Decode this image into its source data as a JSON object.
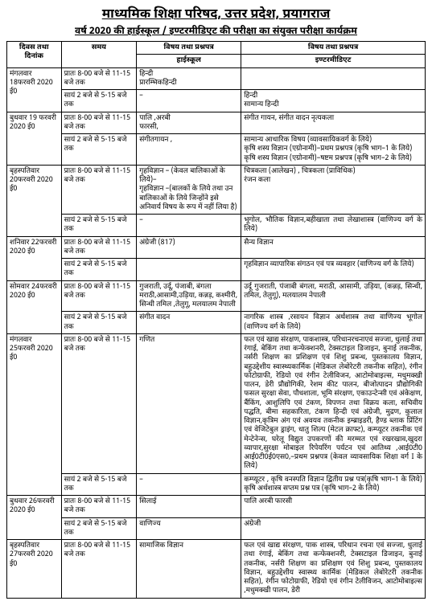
{
  "header": {
    "title": "माध्यमिक शिक्षा परिषद, उत्तर प्रदेश, प्रयागराज",
    "subtitle": "वर्ष 2020 की हाईस्कूल / इण्टरमीडिएट की परीक्षा का संयुक्त परीक्षा कार्यक्रम"
  },
  "columns": {
    "day": "दिवस तथा दिनांक",
    "time": "समय",
    "hs_top": "विषय तथा प्रश्नपत्र",
    "hs_bottom": "हाईस्कूल",
    "inter_top": "विषय तथा प्रश्नपत्र",
    "inter_bottom": "इण्टरमीडिएट"
  },
  "time": {
    "morning": "प्रातः 8-00 बजे से 11-15 बजे तक",
    "evening": "सायं 2 बजे से 5-15 बजे तक"
  },
  "rows": [
    {
      "day": "मंगलवार 18फरवरी 2020 ई0",
      "slots": [
        {
          "time_key": "morning",
          "hs": "हिन्दी\nप्रारम्भिकहिन्दी",
          "inter": ""
        },
        {
          "time_key": "evening",
          "hs": "–",
          "inter": "हिन्दी\nसामान्य हिन्दी"
        }
      ]
    },
    {
      "day": "बुधवार 19 फरवरी 2020 ई0",
      "slots": [
        {
          "time_key": "morning",
          "hs": "पालि ,अरबी\nफारसी,",
          "inter": "संगीत गायन, संगीत वादन नृत्यकला"
        },
        {
          "time_key": "evening",
          "hs": "संगीतगायन ,",
          "inter": "सामान्य आधारिक विषय (व्यावसायिकवर्ग के लिये)\nकृषि शस्य विज्ञान (एग्रोनामी)–प्रथम प्रश्नपत्र (कृषि भाग–1 के लिये)\nकृषि शस्य विज्ञान (एग्रोनामी)–षष्टम प्रश्नपत्र (कृषि भाग–2 के लिये)"
        }
      ]
    },
    {
      "day": "बृहस्पतिवार 20फरवरी 2020 ई0",
      "slots": [
        {
          "time_key": "morning",
          "hs": "गृहविज्ञान – (केवल बालिकाओं के लिये)–\nगृहविज्ञान –(बालकों के लिये तथा उन बालिकाओं के लिये जिन्होंने इसे अनिवार्य विषय के रूप में नहीं लिया है)",
          "inter": "चित्रकला (आलेखन) , चित्रकला (प्राविधिक)\nरंजन कला"
        },
        {
          "time_key": "evening",
          "hs": "–",
          "inter": "भूगोल, भौतिक विज्ञान,बहीखाता तथा लेखाशास्त्र (वाणिज्य वर्ग के लिये)"
        }
      ]
    },
    {
      "day": "शनिवार 22फरवरी 2020 ई0",
      "slots": [
        {
          "time_key": "morning",
          "hs": "अंग्रेजी (817)",
          "inter": "सैन्य विज्ञान"
        },
        {
          "time_key": "evening",
          "hs": "",
          "inter": "गृहविज्ञान व्यापारिक संगठन एवं पत्र व्यवहार (वाणिज्य वर्ग के लिये)"
        }
      ]
    },
    {
      "day": "सोमवार 24फरवरी 2020 ई0",
      "slots": [
        {
          "time_key": "morning",
          "hs": "गुजराती, उर्दू, पंजाबी, बंगला मराठी,आसामी,उड़िया, कन्नड़, कश्मीरी, सिन्धी तमिल ,तेलुगू, मलयालम नेपाली",
          "inter": "उर्दू गुजराती, पंजाबी बंगला, मराठी, आसामी, उड़िया, (कन्नड़, सिन्धी, तमिल, तेलुगू), मलयालम नेपाली"
        },
        {
          "time_key": "evening",
          "hs": "संगीत वादन",
          "inter": "नागरिक शास्त्र ,रसायन विज्ञान अर्थशास्त्र तथा वाणिज्य भूगोल (वाणिज्य वर्ग के लिये)"
        }
      ]
    },
    {
      "day": "मंगलवार 25फरवरी 2020 ई0",
      "slots": [
        {
          "time_key": "morning",
          "hs": "गणित",
          "inter": "फल एवं खाद्य संरक्षण, पाकशास्त्र, परिधानरचनाएवं सज्जा, धुलाई तथा रंगाई, बेकिंग तथा कन्फेक्शनरी, टेक्सटाइल डिजाइन, बुनाई तकनीक, नर्सरी शिक्षण का प्रशिक्षण एवं शिशु प्रबन्ध, पुस्तकालय विज्ञान, बहुउद्देशीय स्वास्थ्यकार्मिक (मेडिकल लेबोरेटरी तकनीक सहित), रंगीन फोटोग्राफी, रेडियो एवं रंगीन टेलीविजन, आटोमोबाइल्स, मधुमक्खी पालन, डेरी प्रौद्योगिकी, रेशम कीट पालन, बीजोत्पादन प्रौद्योगिकी फसल सुरक्षा सेवा, पौधशाला, भूमि संरक्षण, एकाउन्टेन्सी एवं अंकेक्षण, बैंकिंग, आशुलिपि एवं टंकण, विपणन तथा विक्रय कला, सचिवीय पद्धति, बीमा सहकारिता, टंकण हिन्दी एवं अंग्रेजी, मुद्रण, कुलाल विज्ञान,कृत्रिम अंग एवं अवयव तकनीक इम्ब्राइडरी, हैण्ड ब्लाक प्रिंटिंग एवं वेजिटेबुल ड्राइंग, धातु शिल्प (मेटल क्राफ्ट), कम्प्यूटर तकनीक एवं मेन्टेनेन्स, घरेलू विद्युत उपकरणों की मरम्मत एवं रखरखाव,खुदरा व्यापार,सुरक्षा मोबाइल रिपेयरिंग पर्यटन एवं आतिथ्य ,आई0टी0 आई0टी0ई0एस0,–प्रथम प्रश्नपत्र (केवल व्यावसायिक शिक्षा वर्ग I के लिये)"
        },
        {
          "time_key": "evening",
          "hs": "–",
          "inter": "कम्प्यूटर , कृषि वनस्पति विज्ञान द्वितीय प्रश्न पत्र(कृषि भाग–1 के लिये) कृषि अर्थशास्त्र सप्तम प्रश्न पत्र (कृषि भाग–2 के लिये)"
        }
      ]
    },
    {
      "day": "बुधवार 26फरवरी 2020 ई0",
      "slots": [
        {
          "time_key": "morning",
          "hs": "सिलाई",
          "inter": "पालि अरबी फारसी"
        },
        {
          "time_key": "evening",
          "hs": "वाणिज्य",
          "inter": "अंग्रेजी"
        }
      ]
    },
    {
      "day": "बृहस्पतिवार 27फरवरी 2020 ई0",
      "slots": [
        {
          "time_key": "morning",
          "hs": "सामाजिक विज्ञान",
          "inter": "फल एवं खाद्य संरक्षण, पाक शास्त्र, परिधान रचना एवं सज्जा, धुलाई तथा रंगाई, बेकिंग तथा कन्फेक्शनरी, टेक्सटाइल डिजाइन, बुनाई तकनीक, नर्सरी शिक्षण का प्रशिक्षण एवं शिशु प्रबन्ध, पुस्तकालय विज्ञान, बहुउद्देशीय स्वास्थ्य कार्मिक (मेडिकल लेबोरेटरी तकनीक सहित), रंगीन फोटोग्राफी, रेडियो एवं रंगीन टेलीविजन, आटोमोबाइल्स ,मधुमक्खी पालन, डेरी"
        }
      ]
    }
  ]
}
